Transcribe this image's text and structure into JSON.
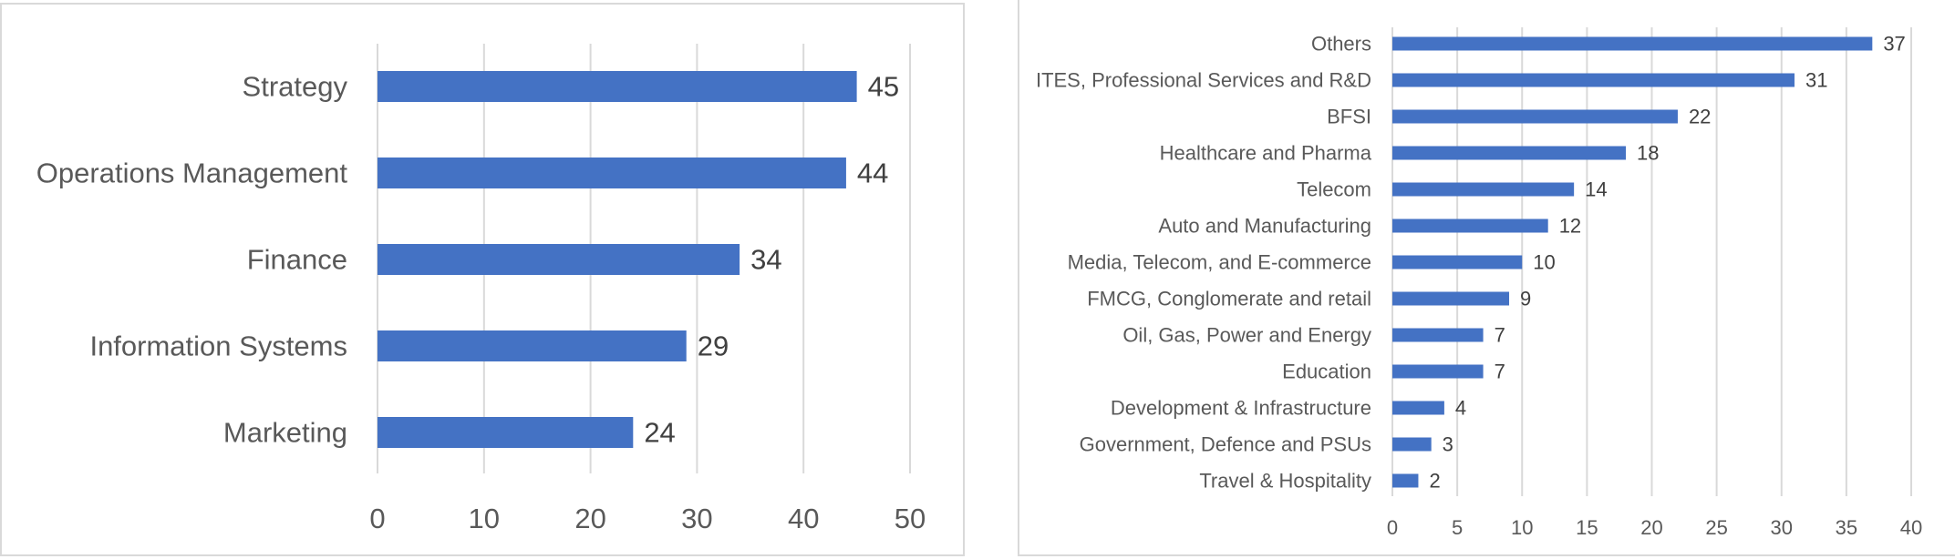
{
  "chart_data": [
    {
      "type": "bar",
      "orientation": "horizontal",
      "categories": [
        "Strategy",
        "Operations Management",
        "Finance",
        "Information Systems",
        "Marketing"
      ],
      "values": [
        45,
        44,
        34,
        29,
        24
      ],
      "xlim": [
        0,
        50
      ],
      "xticks": [
        "0",
        "10",
        "20",
        "30",
        "40",
        "50"
      ],
      "grid": "vertical",
      "bar_color": "#4472c4",
      "data_labels": true
    },
    {
      "type": "bar",
      "orientation": "horizontal",
      "categories": [
        "Others",
        "ITES, Professional Services and R&D",
        "BFSI",
        "Healthcare and Pharma",
        "Telecom",
        "Auto and Manufacturing",
        "Media, Telecom, and E-commerce",
        "FMCG, Conglomerate and retail",
        "Oil, Gas, Power and Energy",
        "Education",
        "Development & Infrastructure",
        "Government, Defence and PSUs",
        "Travel & Hospitality"
      ],
      "values": [
        37,
        31,
        22,
        18,
        14,
        12,
        10,
        9,
        7,
        7,
        4,
        3,
        2
      ],
      "xlim": [
        0,
        40
      ],
      "xticks": [
        "0",
        "5",
        "10",
        "15",
        "20",
        "25",
        "30",
        "35",
        "40"
      ],
      "grid": "vertical",
      "bar_color": "#4472c4",
      "data_labels": true
    }
  ]
}
